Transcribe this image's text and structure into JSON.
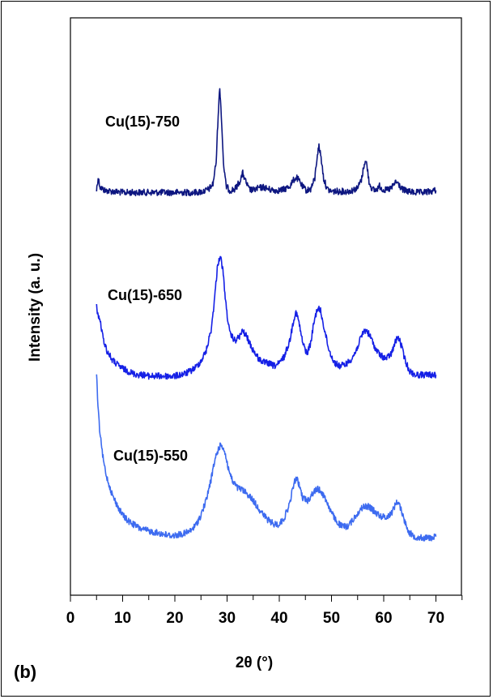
{
  "chart_data": {
    "type": "line",
    "panel_label": "(b)",
    "xlabel": "2θ (°)",
    "ylabel": "Intensity (a. u.)",
    "xlim": [
      0,
      75
    ],
    "xticks": [
      0,
      10,
      20,
      30,
      40,
      50,
      60,
      70
    ],
    "y_ticks_shown": false,
    "grid": false,
    "legend": "none (series labelled directly above curves)",
    "series": [
      {
        "name": "Cu(15)-750",
        "color": "#0d1680",
        "points": [
          [
            5.0,
            0.04
          ],
          [
            5.3,
            0.16
          ],
          [
            5.7,
            0.07
          ],
          [
            6.5,
            0.04
          ],
          [
            8,
            0.03
          ],
          [
            10,
            0.02
          ],
          [
            12,
            0.02
          ],
          [
            14,
            0.02
          ],
          [
            16,
            0.02
          ],
          [
            18,
            0.02
          ],
          [
            20,
            0.02
          ],
          [
            22,
            0.02
          ],
          [
            24,
            0.02
          ],
          [
            25.5,
            0.03
          ],
          [
            26.5,
            0.05
          ],
          [
            27.3,
            0.1
          ],
          [
            27.9,
            0.3
          ],
          [
            28.3,
            0.75
          ],
          [
            28.6,
            1.0
          ],
          [
            28.9,
            0.75
          ],
          [
            29.3,
            0.3
          ],
          [
            29.8,
            0.08
          ],
          [
            30.5,
            0.04
          ],
          [
            31.5,
            0.05
          ],
          [
            32.5,
            0.13
          ],
          [
            33.0,
            0.2
          ],
          [
            33.5,
            0.13
          ],
          [
            34.2,
            0.05
          ],
          [
            35.0,
            0.04
          ],
          [
            36.0,
            0.06
          ],
          [
            37.0,
            0.07
          ],
          [
            38.0,
            0.05
          ],
          [
            39.0,
            0.04
          ],
          [
            40.0,
            0.04
          ],
          [
            41.0,
            0.05
          ],
          [
            42.0,
            0.08
          ],
          [
            42.8,
            0.14
          ],
          [
            43.3,
            0.16
          ],
          [
            43.8,
            0.13
          ],
          [
            44.5,
            0.07
          ],
          [
            45.2,
            0.04
          ],
          [
            46.0,
            0.05
          ],
          [
            46.8,
            0.15
          ],
          [
            47.3,
            0.38
          ],
          [
            47.6,
            0.45
          ],
          [
            48.0,
            0.35
          ],
          [
            48.5,
            0.15
          ],
          [
            49.2,
            0.05
          ],
          [
            50.0,
            0.03
          ],
          [
            51.0,
            0.03
          ],
          [
            52.0,
            0.03
          ],
          [
            53.0,
            0.03
          ],
          [
            54.0,
            0.04
          ],
          [
            55.0,
            0.06
          ],
          [
            55.8,
            0.15
          ],
          [
            56.3,
            0.3
          ],
          [
            56.7,
            0.3
          ],
          [
            57.2,
            0.12
          ],
          [
            57.8,
            0.05
          ],
          [
            58.5,
            0.04
          ],
          [
            59.2,
            0.08
          ],
          [
            59.8,
            0.05
          ],
          [
            60.5,
            0.04
          ],
          [
            61.5,
            0.06
          ],
          [
            62.3,
            0.12
          ],
          [
            62.8,
            0.1
          ],
          [
            63.5,
            0.05
          ],
          [
            64.5,
            0.03
          ],
          [
            66,
            0.02
          ],
          [
            67.5,
            0.02
          ],
          [
            69,
            0.03
          ],
          [
            70,
            0.04
          ]
        ]
      },
      {
        "name": "Cu(15)-650",
        "color": "#1520e6",
        "points": [
          [
            5.0,
            0.6
          ],
          [
            5.3,
            0.52
          ],
          [
            5.7,
            0.48
          ],
          [
            6.2,
            0.35
          ],
          [
            7,
            0.24
          ],
          [
            8,
            0.17
          ],
          [
            9,
            0.13
          ],
          [
            10,
            0.1
          ],
          [
            11,
            0.08
          ],
          [
            12,
            0.06
          ],
          [
            13,
            0.05
          ],
          [
            14,
            0.05
          ],
          [
            15,
            0.04
          ],
          [
            16,
            0.04
          ],
          [
            17,
            0.04
          ],
          [
            18,
            0.04
          ],
          [
            19,
            0.04
          ],
          [
            20,
            0.04
          ],
          [
            21,
            0.05
          ],
          [
            22,
            0.06
          ],
          [
            23,
            0.08
          ],
          [
            24,
            0.11
          ],
          [
            25,
            0.16
          ],
          [
            26,
            0.24
          ],
          [
            27,
            0.42
          ],
          [
            27.7,
            0.7
          ],
          [
            28.2,
            0.93
          ],
          [
            28.7,
            1.0
          ],
          [
            29.2,
            0.88
          ],
          [
            29.8,
            0.6
          ],
          [
            30.5,
            0.38
          ],
          [
            31.5,
            0.32
          ],
          [
            32.3,
            0.35
          ],
          [
            33.0,
            0.4
          ],
          [
            33.8,
            0.35
          ],
          [
            34.8,
            0.26
          ],
          [
            36,
            0.18
          ],
          [
            37,
            0.15
          ],
          [
            38,
            0.14
          ],
          [
            39,
            0.12
          ],
          [
            40,
            0.14
          ],
          [
            41,
            0.2
          ],
          [
            42,
            0.32
          ],
          [
            42.8,
            0.5
          ],
          [
            43.2,
            0.55
          ],
          [
            43.7,
            0.48
          ],
          [
            44.5,
            0.3
          ],
          [
            45.3,
            0.22
          ],
          [
            46.0,
            0.3
          ],
          [
            46.7,
            0.48
          ],
          [
            47.3,
            0.58
          ],
          [
            47.9,
            0.56
          ],
          [
            48.6,
            0.42
          ],
          [
            49.5,
            0.25
          ],
          [
            50.5,
            0.15
          ],
          [
            51.5,
            0.12
          ],
          [
            52.5,
            0.13
          ],
          [
            53.5,
            0.16
          ],
          [
            54.5,
            0.22
          ],
          [
            55.5,
            0.33
          ],
          [
            56.2,
            0.4
          ],
          [
            56.8,
            0.4
          ],
          [
            57.6,
            0.34
          ],
          [
            58.5,
            0.25
          ],
          [
            59.5,
            0.2
          ],
          [
            60.5,
            0.18
          ],
          [
            61.5,
            0.22
          ],
          [
            62.3,
            0.32
          ],
          [
            62.8,
            0.35
          ],
          [
            63.4,
            0.28
          ],
          [
            64.2,
            0.15
          ],
          [
            65,
            0.08
          ],
          [
            66,
            0.05
          ],
          [
            67,
            0.05
          ],
          [
            68,
            0.05
          ],
          [
            69,
            0.05
          ],
          [
            70,
            0.05
          ]
        ]
      },
      {
        "name": "Cu(15)-550",
        "color": "#3d6bf0",
        "points": [
          [
            5.0,
            1.55
          ],
          [
            5.2,
            1.35
          ],
          [
            5.5,
            1.12
          ],
          [
            6.0,
            0.9
          ],
          [
            6.5,
            0.75
          ],
          [
            7,
            0.65
          ],
          [
            8,
            0.5
          ],
          [
            9,
            0.4
          ],
          [
            10,
            0.32
          ],
          [
            11,
            0.27
          ],
          [
            12,
            0.24
          ],
          [
            13,
            0.21
          ],
          [
            14,
            0.19
          ],
          [
            15,
            0.18
          ],
          [
            16,
            0.17
          ],
          [
            17,
            0.16
          ],
          [
            18,
            0.15
          ],
          [
            19,
            0.14
          ],
          [
            20,
            0.14
          ],
          [
            21,
            0.15
          ],
          [
            22,
            0.16
          ],
          [
            23,
            0.18
          ],
          [
            24,
            0.23
          ],
          [
            25,
            0.32
          ],
          [
            26,
            0.45
          ],
          [
            27,
            0.65
          ],
          [
            27.8,
            0.83
          ],
          [
            28.5,
            0.92
          ],
          [
            29.0,
            0.94
          ],
          [
            29.6,
            0.87
          ],
          [
            30.2,
            0.74
          ],
          [
            31.0,
            0.62
          ],
          [
            32.0,
            0.56
          ],
          [
            33.0,
            0.54
          ],
          [
            34.0,
            0.5
          ],
          [
            35.0,
            0.45
          ],
          [
            36.0,
            0.38
          ],
          [
            37.0,
            0.32
          ],
          [
            38.0,
            0.27
          ],
          [
            39.0,
            0.24
          ],
          [
            40.0,
            0.24
          ],
          [
            41.0,
            0.3
          ],
          [
            42.0,
            0.42
          ],
          [
            42.7,
            0.58
          ],
          [
            43.2,
            0.65
          ],
          [
            43.7,
            0.6
          ],
          [
            44.5,
            0.47
          ],
          [
            45.5,
            0.45
          ],
          [
            46.5,
            0.52
          ],
          [
            47.3,
            0.55
          ],
          [
            48.0,
            0.53
          ],
          [
            49.0,
            0.45
          ],
          [
            50.0,
            0.34
          ],
          [
            51.0,
            0.26
          ],
          [
            52.0,
            0.22
          ],
          [
            53.0,
            0.22
          ],
          [
            54.0,
            0.27
          ],
          [
            55.0,
            0.34
          ],
          [
            56.0,
            0.39
          ],
          [
            56.8,
            0.4
          ],
          [
            57.6,
            0.38
          ],
          [
            58.5,
            0.34
          ],
          [
            59.5,
            0.31
          ],
          [
            60.5,
            0.3
          ],
          [
            61.5,
            0.34
          ],
          [
            62.3,
            0.42
          ],
          [
            62.8,
            0.44
          ],
          [
            63.4,
            0.36
          ],
          [
            64.2,
            0.24
          ],
          [
            65,
            0.16
          ],
          [
            66,
            0.13
          ],
          [
            67,
            0.12
          ],
          [
            68,
            0.12
          ],
          [
            69,
            0.12
          ],
          [
            70,
            0.13
          ]
        ]
      }
    ]
  }
}
